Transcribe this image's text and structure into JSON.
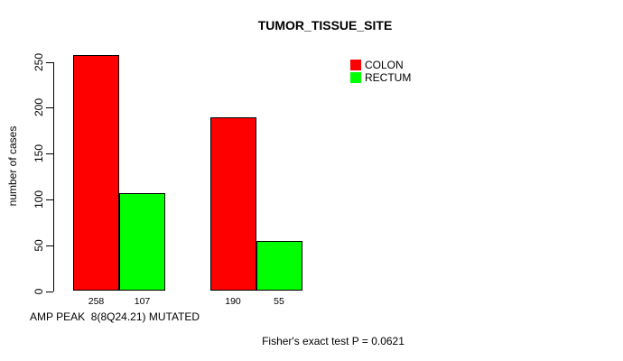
{
  "chart_data": {
    "type": "bar",
    "title": "TUMOR_TISSUE_SITE",
    "ylabel": "number of cases",
    "yticks": [
      0,
      50,
      100,
      150,
      200,
      250
    ],
    "ylim": [
      0,
      258
    ],
    "grid": false,
    "legend_position": "top-right",
    "series": [
      {
        "name": "COLON",
        "color": "#ff0000",
        "values": [
          258,
          190
        ]
      },
      {
        "name": "RECTUM",
        "color": "#00ff00",
        "values": [
          107,
          55
        ]
      }
    ],
    "bar_value_labels": [
      "258",
      "107",
      "190",
      "55"
    ],
    "legend": {
      "entries": [
        {
          "label": "COLON",
          "color": "#ff0000"
        },
        {
          "label": "RECTUM",
          "color": "#00ff00"
        }
      ]
    },
    "annotations": {
      "x_note": "AMP PEAK  8(8Q24.21) MUTATED",
      "stat_note": "Fisher's exact test P = 0.0621"
    },
    "colors": {
      "axis": "#000000",
      "text": "#000000",
      "background": "#ffffff"
    }
  }
}
